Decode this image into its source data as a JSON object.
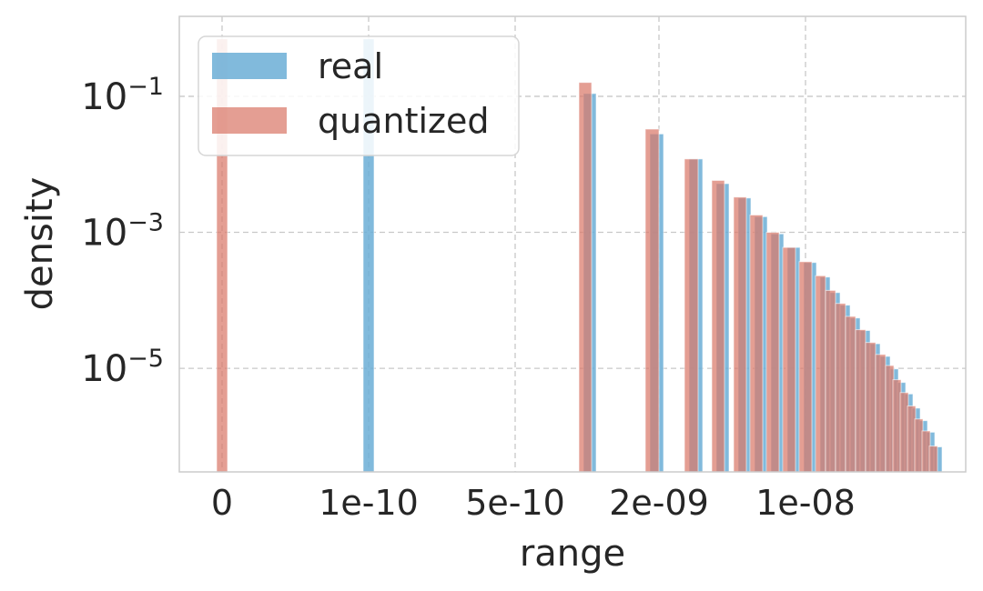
{
  "chart_data": {
    "type": "bar",
    "xlabel": "range",
    "ylabel": "density",
    "x_ticks": [
      "0",
      "1e-10",
      "5e-10",
      "2e-09",
      "1e-08"
    ],
    "y_ticks": [
      {
        "base": "10",
        "exp": "−1",
        "value": 0.1
      },
      {
        "base": "10",
        "exp": "−3",
        "value": 0.001
      },
      {
        "base": "10",
        "exp": "−5",
        "value": 1e-05
      }
    ],
    "y_scale": "log",
    "ylim": [
      3e-07,
      1.5
    ],
    "grid": true,
    "legend_position": "top-left",
    "series": [
      {
        "name": "real",
        "color": "#6baed6",
        "bars": [
          {
            "x": "1e-10",
            "value": 0.7
          },
          {
            "bin": 1,
            "value": 0.11
          },
          {
            "bin": 2,
            "value": 0.028
          },
          {
            "bin": 3,
            "value": 0.012
          },
          {
            "bin": 4,
            "value": 0.0052
          },
          {
            "bin": 5,
            "value": 0.0032
          },
          {
            "bin": 6,
            "value": 0.0017
          },
          {
            "bin": 7,
            "value": 0.00095
          },
          {
            "bin": 8,
            "value": 0.0006
          },
          {
            "bin": 9,
            "value": 0.00036
          },
          {
            "bin": 10,
            "value": 0.00022
          },
          {
            "bin": 11,
            "value": 0.00013
          },
          {
            "bin": 12,
            "value": 8.5e-05
          },
          {
            "bin": 13,
            "value": 5.5e-05
          },
          {
            "bin": 14,
            "value": 3.6e-05
          },
          {
            "bin": 15,
            "value": 2.3e-05
          },
          {
            "bin": 16,
            "value": 1.5e-05
          },
          {
            "bin": 17,
            "value": 9.8e-06
          },
          {
            "bin": 18,
            "value": 6.2e-06
          },
          {
            "bin": 19,
            "value": 4.2e-06
          },
          {
            "bin": 20,
            "value": 2.6e-06
          },
          {
            "bin": 21,
            "value": 1.7e-06
          },
          {
            "bin": 22,
            "value": 1.15e-06
          },
          {
            "bin": 23,
            "value": 7e-07
          }
        ]
      },
      {
        "name": "quantized",
        "color": "#d9796a",
        "bars": [
          {
            "x": "0",
            "value": 0.7
          },
          {
            "bin": 1,
            "value": 0.16
          },
          {
            "bin": 2,
            "value": 0.033
          },
          {
            "bin": 3,
            "value": 0.012
          },
          {
            "bin": 4,
            "value": 0.0058
          },
          {
            "bin": 5,
            "value": 0.0033
          },
          {
            "bin": 6,
            "value": 0.0018
          },
          {
            "bin": 7,
            "value": 0.001
          },
          {
            "bin": 8,
            "value": 0.0006
          },
          {
            "bin": 9,
            "value": 0.00037
          },
          {
            "bin": 10,
            "value": 0.00023
          },
          {
            "bin": 11,
            "value": 0.00014
          },
          {
            "bin": 12,
            "value": 9e-05
          },
          {
            "bin": 13,
            "value": 5.8e-05
          },
          {
            "bin": 14,
            "value": 3.7e-05
          },
          {
            "bin": 15,
            "value": 2.4e-05
          },
          {
            "bin": 16,
            "value": 1.6e-05
          },
          {
            "bin": 17,
            "value": 1.1e-05
          },
          {
            "bin": 18,
            "value": 6.8e-06
          },
          {
            "bin": 19,
            "value": 4.4e-06
          },
          {
            "bin": 20,
            "value": 2.8e-06
          },
          {
            "bin": 21,
            "value": 1.8e-06
          },
          {
            "bin": 22,
            "value": 1.2e-06
          },
          {
            "bin": 23,
            "value": 7.2e-07
          }
        ]
      }
    ]
  }
}
